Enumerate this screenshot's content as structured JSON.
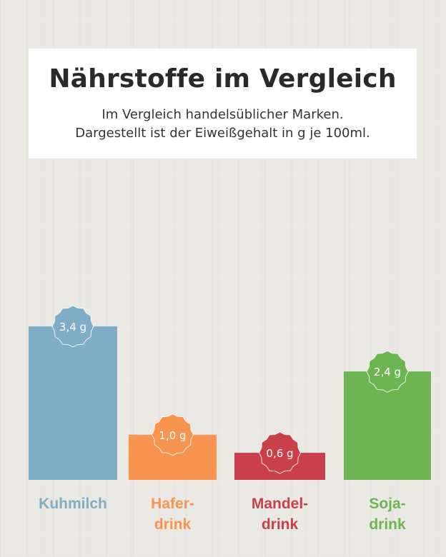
{
  "header": {
    "title": "Nährstoffe im Vergleich",
    "subtitle_line1": "Im Vergleich handelsüblicher Marken.",
    "subtitle_line2": "Dargestellt ist der Eiweißgehalt in g je 100ml."
  },
  "chart_data": {
    "type": "bar",
    "title": "Nährstoffe im Vergleich",
    "subtitle": "Im Vergleich handelsüblicher Marken. Dargestellt ist der Eiweißgehalt in g je 100ml.",
    "unit": "g",
    "categories": [
      "Kuhmilch",
      "Haferdrink",
      "Mandeldrink",
      "Sojadrink"
    ],
    "category_lines": [
      [
        "Kuhmilch"
      ],
      [
        "Hafer-",
        "drink"
      ],
      [
        "Mandel-",
        "drink"
      ],
      [
        "Soja-",
        "drink"
      ]
    ],
    "values": [
      3.4,
      1.0,
      0.6,
      2.4
    ],
    "value_labels": [
      "3,4 g",
      "1,0 g",
      "0,6 g",
      "2,4 g"
    ],
    "colors": [
      "#7fadc6",
      "#f69450",
      "#c9404a",
      "#6db552"
    ],
    "ylim": [
      0,
      3.4
    ],
    "grid": false,
    "legend": "none"
  }
}
